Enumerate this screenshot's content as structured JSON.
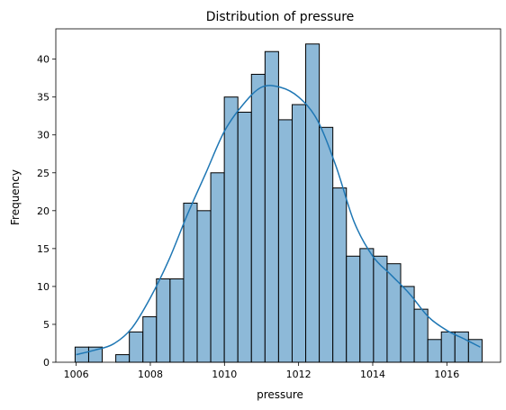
{
  "chart_data": {
    "type": "bar",
    "title": "Distribution of pressure",
    "xlabel": "pressure",
    "ylabel": "Frequency",
    "xlim": [
      1005.45,
      1017.45
    ],
    "ylim": [
      0,
      44
    ],
    "xticks": [
      1006,
      1008,
      1010,
      1012,
      1014,
      1016
    ],
    "yticks": [
      0,
      5,
      10,
      15,
      20,
      25,
      30,
      35,
      40
    ],
    "grid": false,
    "bin_start": 1005.97,
    "bin_width": 0.366,
    "counts": [
      2,
      2,
      0,
      1,
      4,
      6,
      11,
      11,
      21,
      20,
      25,
      35,
      33,
      38,
      41,
      32,
      34,
      42,
      31,
      23,
      14,
      15,
      14,
      13,
      10,
      7,
      3,
      4,
      4,
      3
    ],
    "kde": {
      "x": [
        1006.0,
        1006.5,
        1007.0,
        1007.5,
        1008.0,
        1008.5,
        1009.0,
        1009.5,
        1010.0,
        1010.5,
        1011.0,
        1011.5,
        1012.0,
        1012.5,
        1013.0,
        1013.5,
        1014.0,
        1014.5,
        1015.0,
        1015.5,
        1016.0,
        1016.5,
        1016.9
      ],
      "y": [
        1.0,
        1.6,
        2.4,
        4.5,
        8.5,
        13.5,
        19.5,
        25.0,
        30.5,
        34.0,
        36.3,
        36.3,
        35.0,
        32.0,
        26.0,
        18.5,
        14.0,
        11.5,
        9.0,
        6.0,
        4.2,
        3.0,
        2.0
      ]
    },
    "colors": {
      "bar_fill": "#8db9d8",
      "bar_edge": "#000000",
      "kde_line": "#1f77b4"
    }
  }
}
